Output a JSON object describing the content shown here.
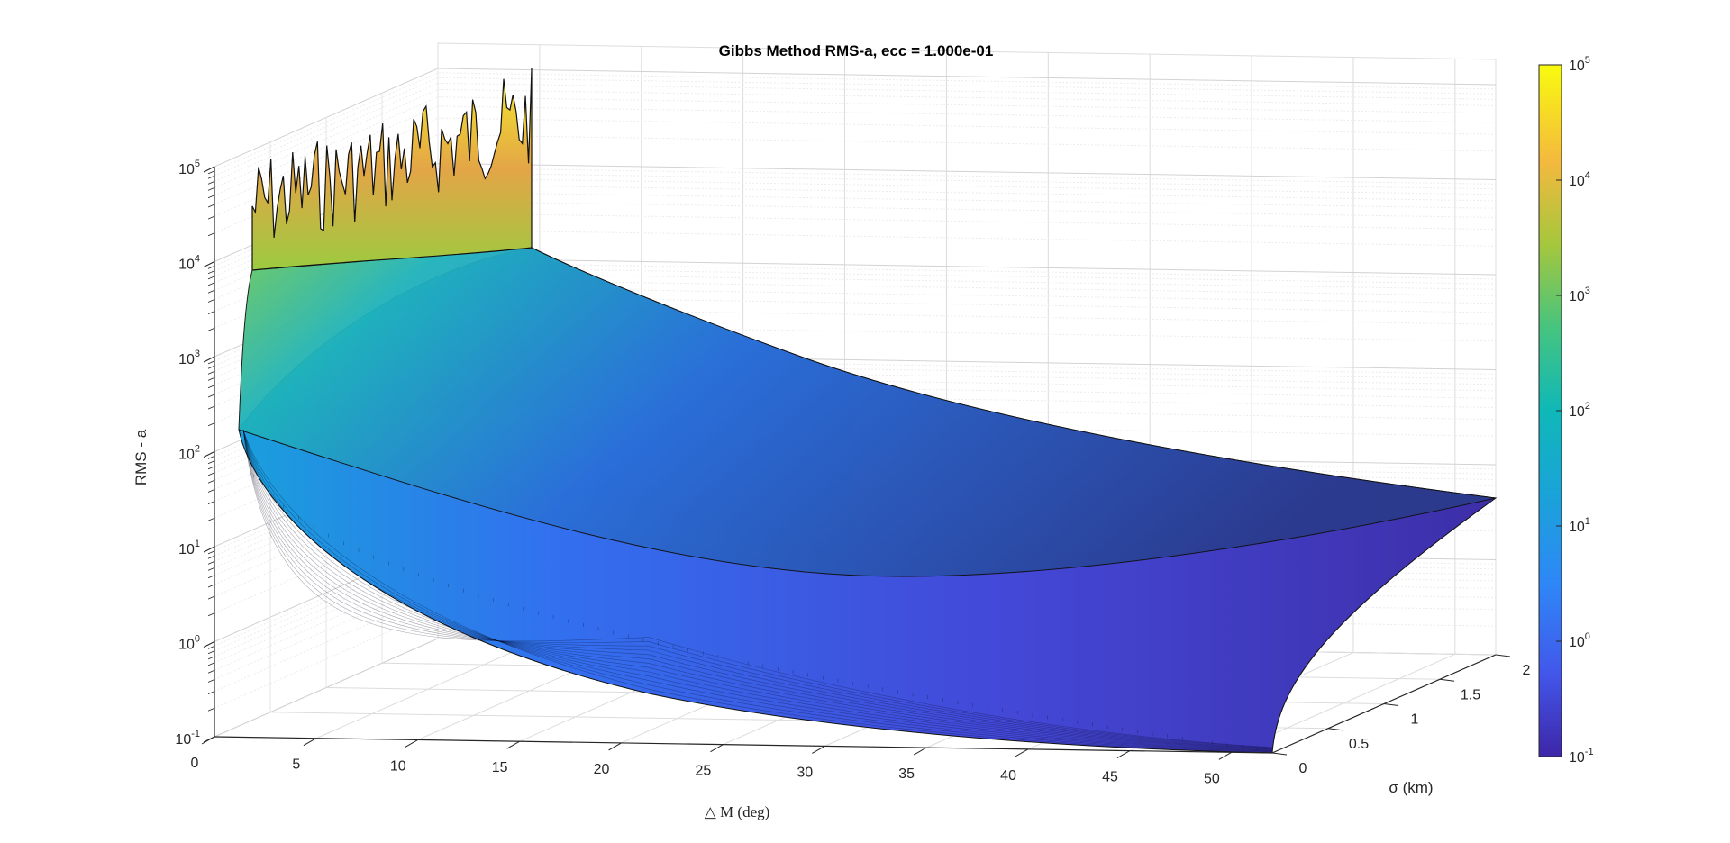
{
  "chart_data": {
    "type": "surface",
    "title": "Gibbs Method RMS-a, ecc = 1.000e-01",
    "xlabel": "△ M (deg)",
    "ylabel": "σ (km)",
    "zlabel": "RMS - a",
    "x_ticks": [
      "0",
      "5",
      "10",
      "15",
      "20",
      "25",
      "30",
      "35",
      "40",
      "45",
      "50"
    ],
    "y_ticks": [
      "0",
      "0.5",
      "1",
      "1.5",
      "2"
    ],
    "z_ticks": [
      {
        "base": "10",
        "exp": "-1"
      },
      {
        "base": "10",
        "exp": "0"
      },
      {
        "base": "10",
        "exp": "1"
      },
      {
        "base": "10",
        "exp": "2"
      },
      {
        "base": "10",
        "exp": "3"
      },
      {
        "base": "10",
        "exp": "4"
      },
      {
        "base": "10",
        "exp": "5"
      }
    ],
    "xlim": [
      0,
      52
    ],
    "ylim": [
      0,
      2
    ],
    "zlim": [
      0.1,
      100000
    ],
    "zscale": "log",
    "grid": true,
    "colormap": "parula",
    "colorbar": {
      "scale": "log",
      "ticks": [
        {
          "base": "10",
          "exp": "-1"
        },
        {
          "base": "10",
          "exp": "0"
        },
        {
          "base": "10",
          "exp": "1"
        },
        {
          "base": "10",
          "exp": "2"
        },
        {
          "base": "10",
          "exp": "3"
        },
        {
          "base": "10",
          "exp": "4"
        },
        {
          "base": "10",
          "exp": "5"
        }
      ]
    },
    "surface_samples": [
      {
        "x": 1,
        "y": 0,
        "z": 50
      },
      {
        "x": 1,
        "y": 2,
        "z": 100000
      },
      {
        "x": 10,
        "y": 0,
        "z": 5
      },
      {
        "x": 10,
        "y": 2,
        "z": 300
      },
      {
        "x": 30,
        "y": 0,
        "z": 1
      },
      {
        "x": 30,
        "y": 2,
        "z": 60
      },
      {
        "x": 52,
        "y": 0,
        "z": 0.3
      },
      {
        "x": 52,
        "y": 2,
        "z": 20
      }
    ]
  }
}
